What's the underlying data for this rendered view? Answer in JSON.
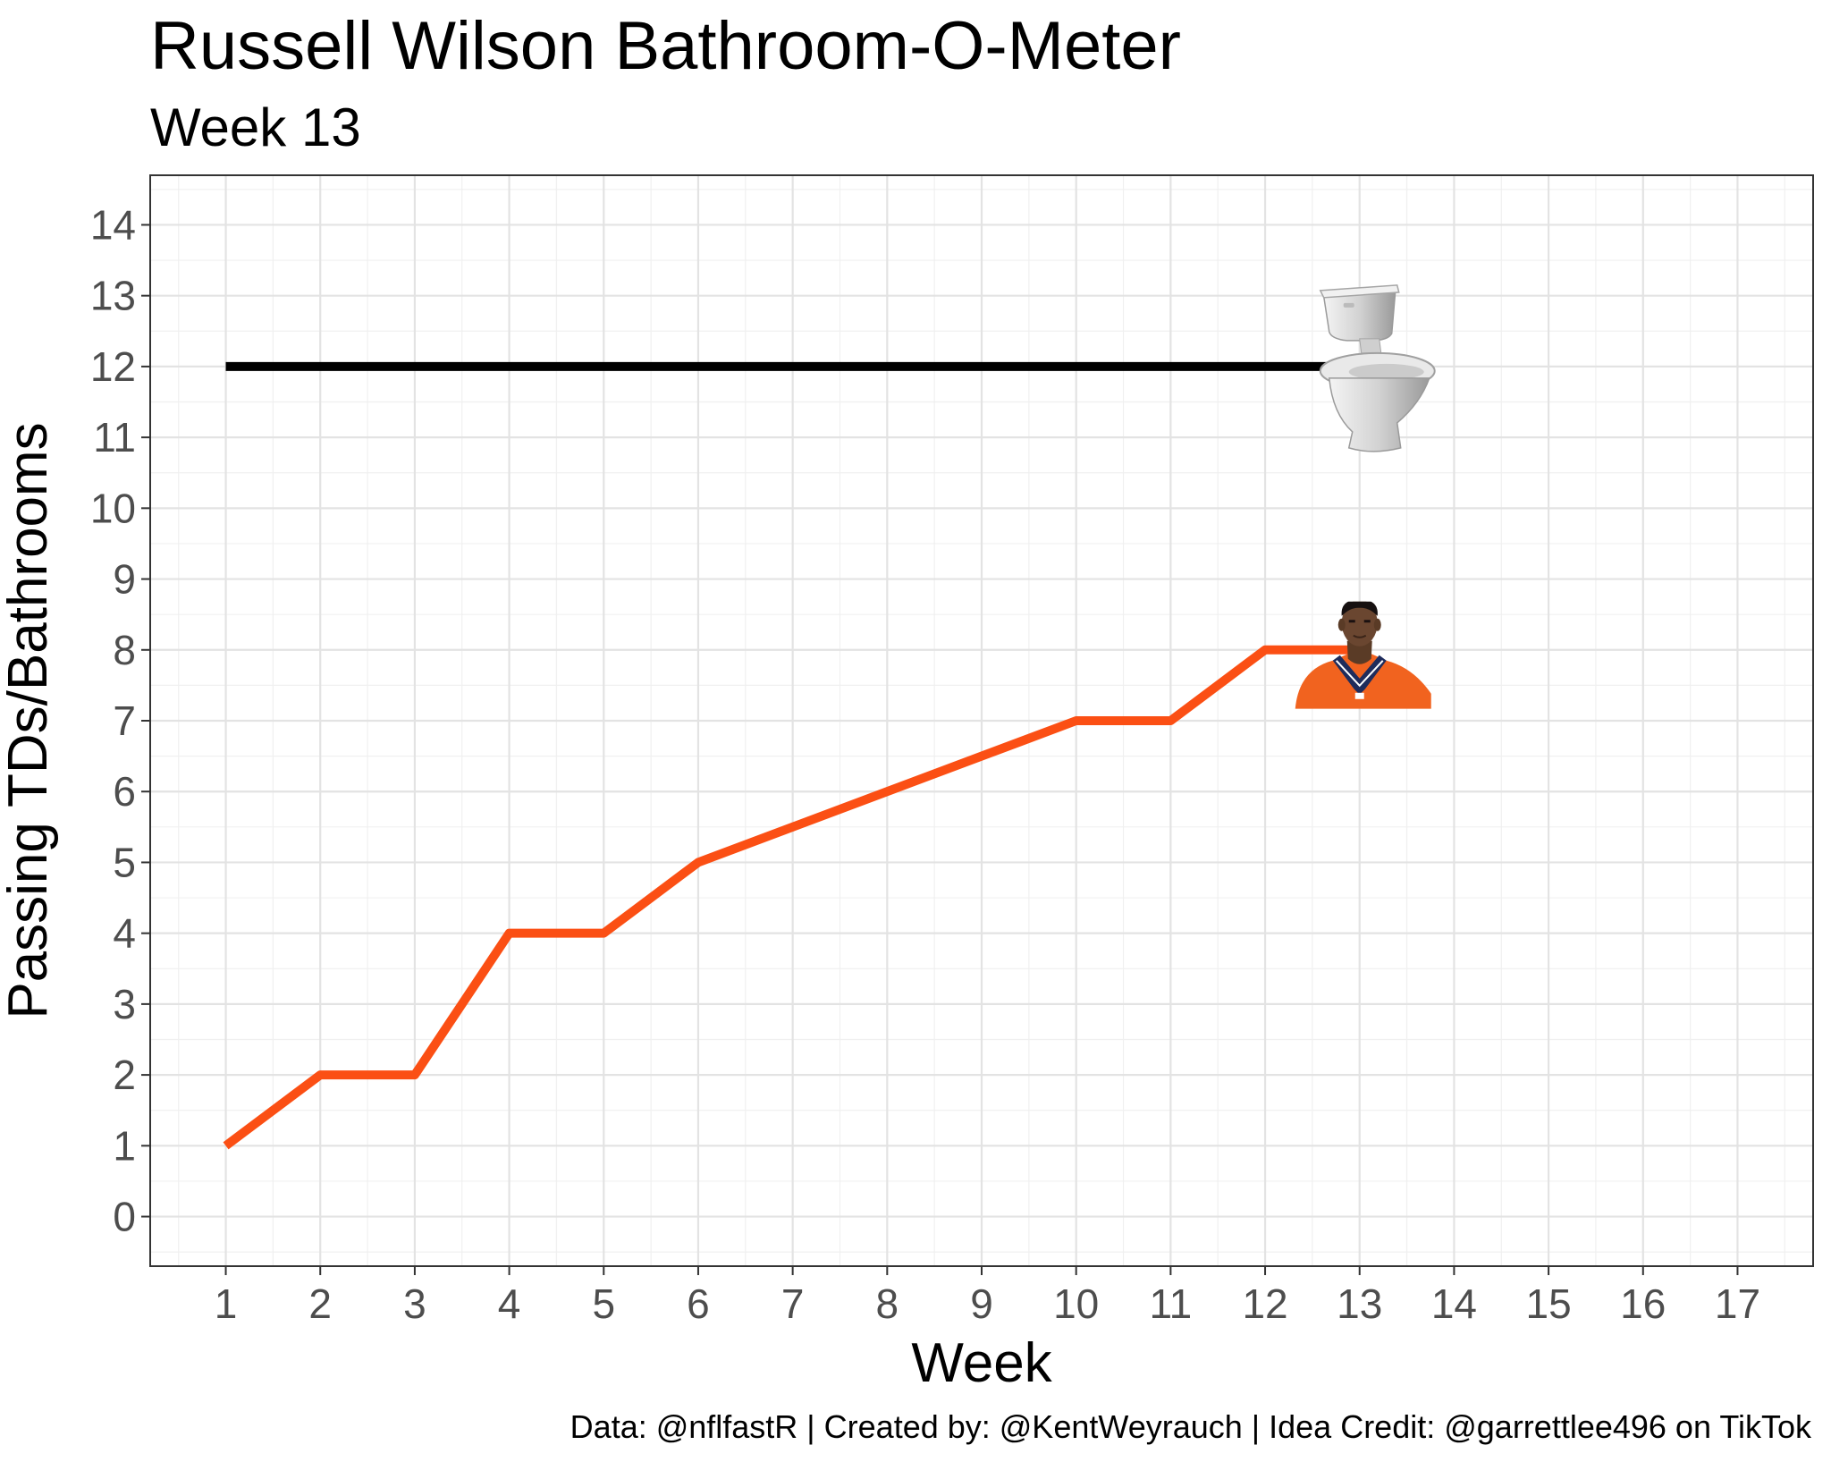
{
  "chart_data": {
    "type": "line",
    "title": "Russell Wilson Bathroom-O-Meter",
    "subtitle": "Week 13",
    "xlabel": "Week",
    "ylabel": "Passing TDs/Bathrooms",
    "caption": "Data: @nflfastR | Created by: @KentWeyrauch | Idea Credit: @garrettlee496 on TikTok",
    "xlim": [
      0.2,
      17.8
    ],
    "ylim": [
      -0.7,
      14.7
    ],
    "x_ticks": [
      1,
      2,
      3,
      4,
      5,
      6,
      7,
      8,
      9,
      10,
      11,
      12,
      13,
      14,
      15,
      16,
      17
    ],
    "y_ticks": [
      0,
      1,
      2,
      3,
      4,
      5,
      6,
      7,
      8,
      9,
      10,
      11,
      12,
      13,
      14
    ],
    "grid": true,
    "series": [
      {
        "x": [
          1,
          2,
          3,
          4,
          5,
          6,
          7,
          8,
          9,
          10,
          11,
          12,
          13
        ],
        "y": [
          1,
          2,
          2,
          4,
          4,
          5,
          5.5,
          6,
          6.5,
          7,
          7,
          8,
          8
        ],
        "color": "#FB4F14",
        "marker_icon": "player-headshot-icon"
      },
      {
        "x": [
          1,
          13
        ],
        "y": [
          12,
          12
        ],
        "color": "#000000",
        "marker_icon": "toilet-icon"
      }
    ]
  }
}
